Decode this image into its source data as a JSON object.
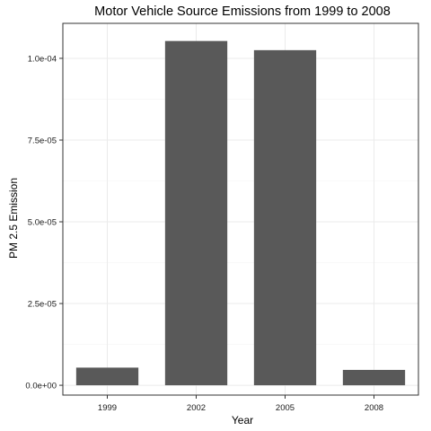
{
  "chart_data": {
    "type": "bar",
    "title": "Motor Vehicle Source Emissions from 1999 to 2008",
    "xlabel": "Year",
    "ylabel": "PM 2.5 Emission",
    "categories": [
      "1999",
      "2002",
      "2005",
      "2008"
    ],
    "values": [
      5.4e-06,
      0.0001053,
      0.0001025,
      4.7e-06
    ],
    "ylim": [
      -3e-06,
      0.0001107
    ],
    "yticks": [
      0,
      2.5e-05,
      5e-05,
      7.5e-05,
      0.0001
    ],
    "ytick_labels": [
      "0.0e+00",
      "2.5e-05",
      "5.0e-05",
      "7.5e-05",
      "1.0e-04"
    ],
    "bar_color": "#595959",
    "panel_border_color": "#333333",
    "grid": true,
    "legend": "none"
  }
}
